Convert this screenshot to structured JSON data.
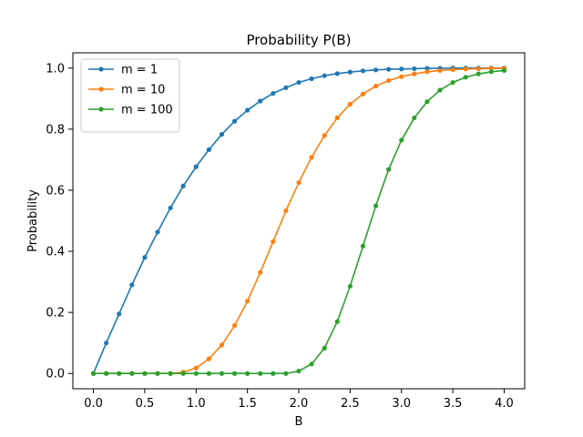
{
  "chart_data": {
    "type": "line",
    "title": "Probability P(B)",
    "xlabel": "B",
    "ylabel": "Probability",
    "xlim": [
      -0.2,
      4.2
    ],
    "ylim": [
      -0.05,
      1.05
    ],
    "xticks": [
      0.0,
      0.5,
      1.0,
      1.5,
      2.0,
      2.5,
      3.0,
      3.5,
      4.0
    ],
    "xtick_labels": [
      "0.0",
      "0.5",
      "1.0",
      "1.5",
      "2.0",
      "2.5",
      "3.0",
      "3.5",
      "4.0"
    ],
    "yticks": [
      0.0,
      0.2,
      0.4,
      0.6,
      0.8,
      1.0
    ],
    "ytick_labels": [
      "0.0",
      "0.2",
      "0.4",
      "0.6",
      "0.8",
      "1.0"
    ],
    "grid": false,
    "legend_position": "top-left",
    "x": [
      0.0,
      0.125,
      0.25,
      0.375,
      0.5,
      0.625,
      0.75,
      0.875,
      1.0,
      1.125,
      1.25,
      1.375,
      1.5,
      1.625,
      1.75,
      1.875,
      2.0,
      2.125,
      2.25,
      2.375,
      2.5,
      2.625,
      2.75,
      2.875,
      3.0,
      3.125,
      3.25,
      3.375,
      3.5,
      3.625,
      3.75,
      3.875,
      4.0
    ],
    "series": [
      {
        "name": "m = 1",
        "color": "#1f77b4",
        "values": [
          0.0,
          0.1,
          0.195,
          0.29,
          0.38,
          0.463,
          0.542,
          0.614,
          0.677,
          0.733,
          0.783,
          0.826,
          0.862,
          0.892,
          0.917,
          0.936,
          0.953,
          0.965,
          0.975,
          0.982,
          0.987,
          0.991,
          0.994,
          0.996,
          0.997,
          0.998,
          0.999,
          0.999,
          1.0,
          1.0,
          1.0,
          1.0,
          1.0
        ]
      },
      {
        "name": "m = 10",
        "color": "#ff7f0e",
        "values": [
          0.0,
          0.0,
          0.0,
          0.0,
          0.0,
          0.0,
          0.0,
          0.004,
          0.018,
          0.048,
          0.093,
          0.157,
          0.237,
          0.331,
          0.432,
          0.533,
          0.625,
          0.708,
          0.779,
          0.837,
          0.882,
          0.915,
          0.941,
          0.959,
          0.972,
          0.981,
          0.988,
          0.992,
          0.995,
          0.997,
          0.998,
          0.999,
          0.999
        ]
      },
      {
        "name": "m = 100",
        "color": "#2ca02c",
        "values": [
          0.0,
          0.0,
          0.0,
          0.0,
          0.0,
          0.0,
          0.0,
          0.0,
          0.0,
          0.0,
          0.0,
          0.0,
          0.0,
          0.0,
          0.0,
          0.0,
          0.008,
          0.031,
          0.083,
          0.17,
          0.286,
          0.417,
          0.549,
          0.668,
          0.764,
          0.837,
          0.89,
          0.928,
          0.953,
          0.97,
          0.981,
          0.988,
          0.992
        ]
      }
    ]
  }
}
